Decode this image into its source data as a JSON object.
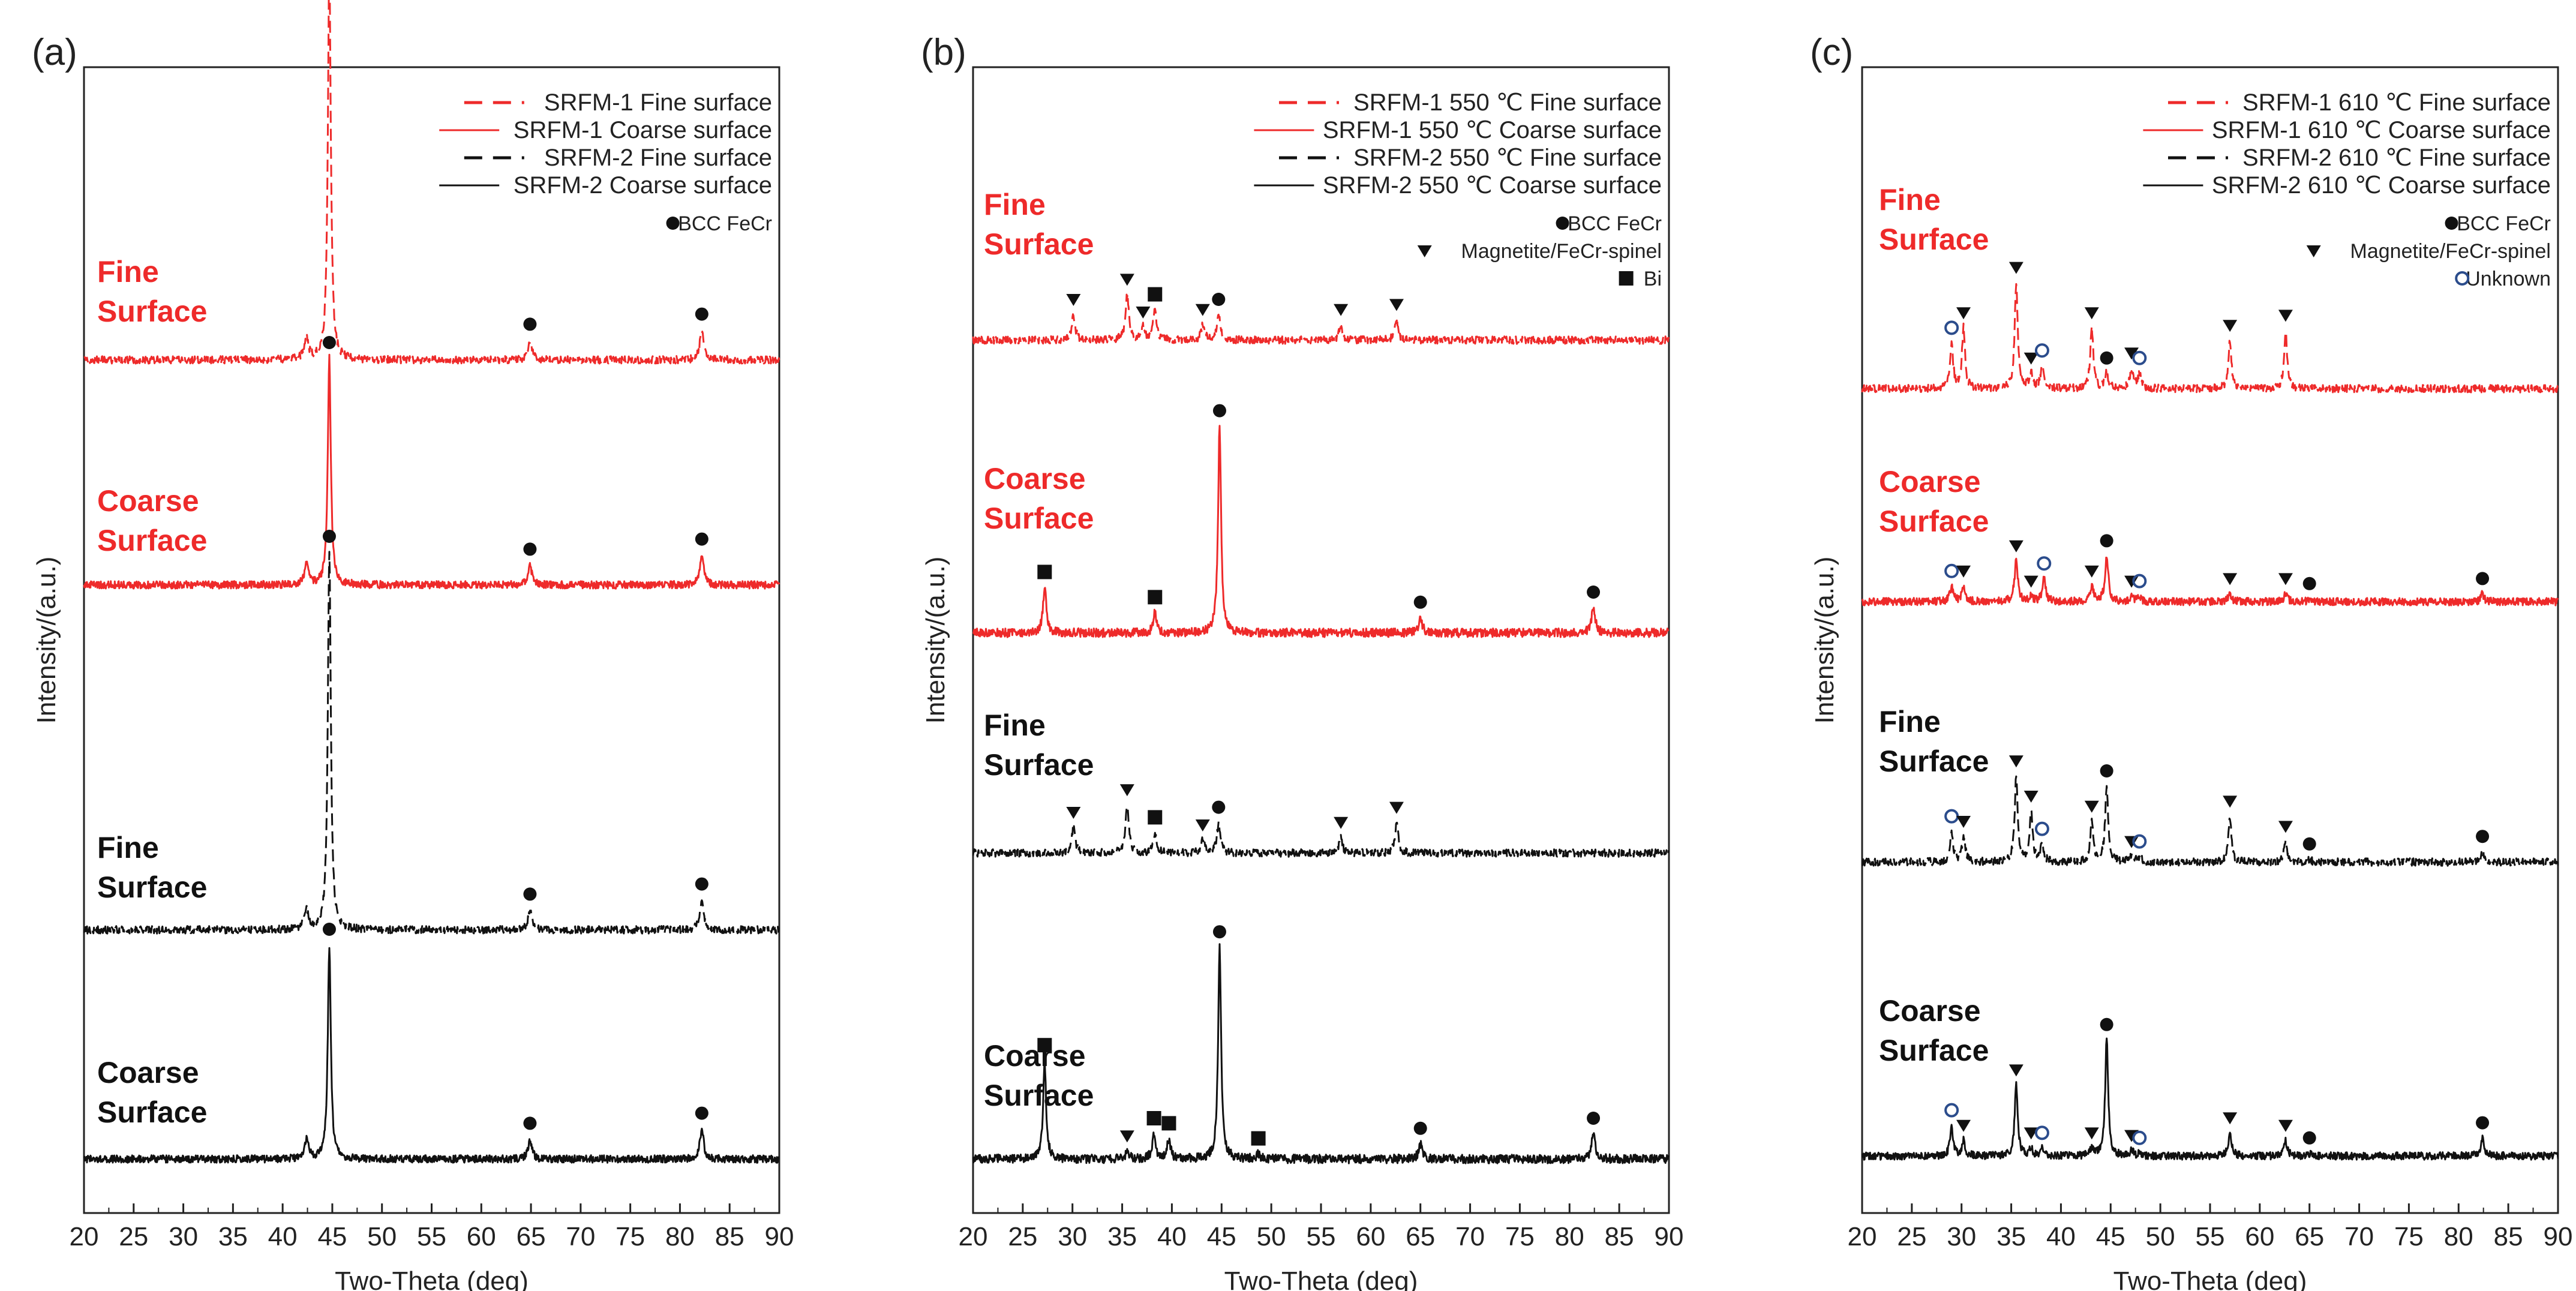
{
  "figure": {
    "colors": {
      "red": "#ee2a2a",
      "black": "#111111",
      "marker_blue": "#2b4c8c"
    }
  },
  "chart_data": [
    {
      "type": "line",
      "panel_label": "(a)",
      "xlabel": "Two-Theta (deg)",
      "ylabel": "Intensity/(a.u.)",
      "xlim": [
        20,
        90
      ],
      "xticks": [
        "20",
        "25",
        "30",
        "35",
        "40",
        "45",
        "50",
        "55",
        "60",
        "65",
        "70",
        "75",
        "80",
        "85",
        "90"
      ],
      "grid": false,
      "legend": {
        "placement": "top-right",
        "entries": [
          {
            "label": "SRFM-1 Fine surface",
            "color": "#ee2a2a",
            "style": "dashed"
          },
          {
            "label": "SRFM-1 Coarse surface",
            "color": "#ee2a2a",
            "style": "solid"
          },
          {
            "label": "SRFM-2 Fine surface",
            "color": "#111111",
            "style": "dashed"
          },
          {
            "label": "SRFM-2 Coarse surface",
            "color": "#111111",
            "style": "solid"
          }
        ],
        "phases": [
          {
            "marker": "circle",
            "label": "BCC FeCr"
          }
        ]
      },
      "series": [
        {
          "name": "SRFM-1 Fine surface",
          "curve_label": [
            "Fine",
            "Surface"
          ],
          "color": "#ee2a2a",
          "style": "dashed",
          "baseline": 0.0,
          "noise": 0.3,
          "peaks": [
            {
              "x": 42.4,
              "h": 0.8,
              "w": 0.25
            },
            {
              "x": 44.7,
              "h": 15.5,
              "w": 0.18,
              "m": "circle"
            },
            {
              "x": 64.9,
              "h": 0.8,
              "w": 0.22,
              "m": "circle"
            },
            {
              "x": 82.2,
              "h": 1.2,
              "w": 0.22,
              "m": "circle"
            }
          ]
        },
        {
          "name": "SRFM-1 Coarse surface",
          "curve_label": [
            "Coarse",
            "Surface"
          ],
          "color": "#ee2a2a",
          "style": "solid",
          "baseline": 0.0,
          "noise": 0.3,
          "peaks": [
            {
              "x": 42.4,
              "h": 0.8,
              "w": 0.25
            },
            {
              "x": 44.7,
              "h": 9.0,
              "w": 0.18,
              "m": "circle"
            },
            {
              "x": 64.9,
              "h": 0.8,
              "w": 0.22,
              "m": "circle"
            },
            {
              "x": 82.2,
              "h": 1.2,
              "w": 0.22,
              "m": "circle"
            }
          ]
        },
        {
          "name": "SRFM-2 Fine surface",
          "curve_label": [
            "Fine",
            "Surface"
          ],
          "color": "#111111",
          "style": "dashed",
          "baseline": 0.0,
          "noise": 0.3,
          "peaks": [
            {
              "x": 42.4,
              "h": 0.8,
              "w": 0.25
            },
            {
              "x": 44.7,
              "h": 15.0,
              "w": 0.18,
              "m": "circle"
            },
            {
              "x": 64.9,
              "h": 0.8,
              "w": 0.22,
              "m": "circle"
            },
            {
              "x": 82.2,
              "h": 1.2,
              "w": 0.22,
              "m": "circle"
            }
          ]
        },
        {
          "name": "SRFM-2 Coarse surface",
          "curve_label": [
            "Coarse",
            "Surface"
          ],
          "color": "#111111",
          "style": "solid",
          "baseline": 0.0,
          "noise": 0.3,
          "peaks": [
            {
              "x": 42.4,
              "h": 0.8,
              "w": 0.25
            },
            {
              "x": 44.7,
              "h": 8.5,
              "w": 0.18,
              "m": "circle"
            },
            {
              "x": 64.9,
              "h": 0.8,
              "w": 0.22,
              "m": "circle"
            },
            {
              "x": 82.2,
              "h": 1.2,
              "w": 0.22,
              "m": "circle"
            }
          ]
        }
      ]
    },
    {
      "type": "line",
      "panel_label": "(b)",
      "xlabel": "Two-Theta (deg)",
      "ylabel": "Intensity/(a.u.)",
      "xlim": [
        20,
        90
      ],
      "xticks": [
        "20",
        "25",
        "30",
        "35",
        "40",
        "45",
        "50",
        "55",
        "60",
        "65",
        "70",
        "75",
        "80",
        "85",
        "90"
      ],
      "grid": false,
      "legend": {
        "placement": "top-right",
        "entries": [
          {
            "label": "SRFM-1 550 ℃ Fine surface",
            "color": "#ee2a2a",
            "style": "dashed"
          },
          {
            "label": "SRFM-1 550 ℃ Coarse surface",
            "color": "#ee2a2a",
            "style": "solid"
          },
          {
            "label": "SRFM-2 550 ℃ Fine surface",
            "color": "#111111",
            "style": "dashed"
          },
          {
            "label": "SRFM-2 550 ℃ Coarse surface",
            "color": "#111111",
            "style": "solid"
          }
        ],
        "phases": [
          {
            "marker": "circle",
            "label": "BCC FeCr"
          },
          {
            "marker": "triangle",
            "label": "Magnetite/FeCr-spinel"
          },
          {
            "marker": "square",
            "label": "Bi"
          }
        ]
      },
      "series": [
        {
          "name": "SRFM-1 550 ℃ Fine surface",
          "curve_label": [
            "Fine",
            "Surface"
          ],
          "color": "#ee2a2a",
          "style": "dashed",
          "baseline": 0.0,
          "noise": 0.3,
          "peaks": [
            {
              "x": 30.1,
              "h": 1.0,
              "w": 0.2,
              "m": "triangle"
            },
            {
              "x": 35.5,
              "h": 1.8,
              "w": 0.2,
              "m": "triangle"
            },
            {
              "x": 37.1,
              "h": 0.5,
              "w": 0.2,
              "m": "triangle"
            },
            {
              "x": 38.3,
              "h": 1.2,
              "w": 0.2,
              "m": "square"
            },
            {
              "x": 43.1,
              "h": 0.6,
              "w": 0.2,
              "m": "triangle"
            },
            {
              "x": 44.7,
              "h": 1.0,
              "w": 0.2,
              "m": "circle"
            },
            {
              "x": 57.0,
              "h": 0.6,
              "w": 0.2,
              "m": "triangle"
            },
            {
              "x": 62.6,
              "h": 0.8,
              "w": 0.2,
              "m": "triangle"
            }
          ]
        },
        {
          "name": "SRFM-1 550 ℃ Coarse surface",
          "curve_label": [
            "Coarse",
            "Surface"
          ],
          "color": "#ee2a2a",
          "style": "solid",
          "baseline": 0.0,
          "noise": 0.35,
          "peaks": [
            {
              "x": 27.2,
              "h": 1.8,
              "w": 0.2,
              "m": "square"
            },
            {
              "x": 38.3,
              "h": 0.8,
              "w": 0.2,
              "m": "square"
            },
            {
              "x": 44.8,
              "h": 8.2,
              "w": 0.18,
              "m": "circle"
            },
            {
              "x": 65.0,
              "h": 0.6,
              "w": 0.22,
              "m": "circle"
            },
            {
              "x": 82.4,
              "h": 1.0,
              "w": 0.22,
              "m": "circle"
            }
          ]
        },
        {
          "name": "SRFM-2 550 ℃ Fine surface",
          "curve_label": [
            "Fine",
            "Surface"
          ],
          "color": "#111111",
          "style": "dashed",
          "baseline": 0.0,
          "noise": 0.3,
          "peaks": [
            {
              "x": 30.1,
              "h": 1.0,
              "w": 0.2,
              "m": "triangle"
            },
            {
              "x": 35.5,
              "h": 1.9,
              "w": 0.2,
              "m": "triangle"
            },
            {
              "x": 38.3,
              "h": 0.8,
              "w": 0.2,
              "m": "square"
            },
            {
              "x": 43.1,
              "h": 0.5,
              "w": 0.2,
              "m": "triangle"
            },
            {
              "x": 44.7,
              "h": 1.2,
              "w": 0.2,
              "m": "circle"
            },
            {
              "x": 57.0,
              "h": 0.6,
              "w": 0.2,
              "m": "triangle"
            },
            {
              "x": 62.6,
              "h": 1.2,
              "w": 0.2,
              "m": "triangle"
            }
          ]
        },
        {
          "name": "SRFM-2 550 ℃ Coarse surface",
          "curve_label": [
            "Coarse",
            "Surface"
          ],
          "color": "#111111",
          "style": "solid",
          "baseline": 0.0,
          "noise": 0.35,
          "peaks": [
            {
              "x": 27.2,
              "h": 3.9,
              "w": 0.18,
              "m": "square"
            },
            {
              "x": 35.5,
              "h": 0.3,
              "w": 0.2,
              "m": "triangle"
            },
            {
              "x": 38.2,
              "h": 1.0,
              "w": 0.2,
              "m": "square"
            },
            {
              "x": 39.7,
              "h": 0.8,
              "w": 0.2,
              "m": "square"
            },
            {
              "x": 44.8,
              "h": 8.4,
              "w": 0.18,
              "m": "circle"
            },
            {
              "x": 48.7,
              "h": 0.2,
              "w": 0.2,
              "m": "square"
            },
            {
              "x": 65.0,
              "h": 0.6,
              "w": 0.22,
              "m": "circle"
            },
            {
              "x": 82.4,
              "h": 1.0,
              "w": 0.22,
              "m": "circle"
            }
          ]
        }
      ]
    },
    {
      "type": "line",
      "panel_label": "(c)",
      "xlabel": "Two-Theta (deg)",
      "ylabel": "Intensity/(a.u.)",
      "xlim": [
        20,
        90
      ],
      "xticks": [
        "20",
        "25",
        "30",
        "35",
        "40",
        "45",
        "50",
        "55",
        "60",
        "65",
        "70",
        "75",
        "80",
        "85",
        "90"
      ],
      "grid": false,
      "legend": {
        "placement": "top-right",
        "entries": [
          {
            "label": "SRFM-1 610 ℃ Fine surface",
            "color": "#ee2a2a",
            "style": "dashed"
          },
          {
            "label": "SRFM-1 610 ℃ Coarse surface",
            "color": "#ee2a2a",
            "style": "solid"
          },
          {
            "label": "SRFM-2 610 ℃ Fine surface",
            "color": "#111111",
            "style": "dashed"
          },
          {
            "label": "SRFM-2 610 ℃ Coarse surface",
            "color": "#111111",
            "style": "solid"
          }
        ],
        "phases": [
          {
            "marker": "circle",
            "label": "BCC FeCr"
          },
          {
            "marker": "triangle",
            "label": "Magnetite/FeCr-spinel"
          },
          {
            "marker": "ring",
            "label": "Unknown"
          }
        ]
      },
      "series": [
        {
          "name": "SRFM-1 610 ℃ Fine surface",
          "curve_label": [
            "Fine",
            "Surface"
          ],
          "color": "#ee2a2a",
          "style": "dashed",
          "baseline": 0.0,
          "noise": 0.3,
          "peaks": [
            {
              "x": 29.0,
              "h": 1.8,
              "w": 0.18,
              "m": "ring"
            },
            {
              "x": 30.2,
              "h": 2.4,
              "w": 0.18,
              "m": "triangle"
            },
            {
              "x": 35.5,
              "h": 4.2,
              "w": 0.18,
              "m": "triangle"
            },
            {
              "x": 37.0,
              "h": 0.6,
              "w": 0.2,
              "m": "triangle"
            },
            {
              "x": 38.1,
              "h": 0.9,
              "w": 0.2,
              "m": "ring"
            },
            {
              "x": 43.1,
              "h": 2.4,
              "w": 0.18,
              "m": "triangle"
            },
            {
              "x": 44.6,
              "h": 0.6,
              "w": 0.2,
              "m": "circle"
            },
            {
              "x": 47.1,
              "h": 0.8,
              "w": 0.2,
              "m": "triangle"
            },
            {
              "x": 47.9,
              "h": 0.6,
              "w": 0.2,
              "m": "ring"
            },
            {
              "x": 57.0,
              "h": 1.9,
              "w": 0.18,
              "m": "triangle"
            },
            {
              "x": 62.6,
              "h": 2.3,
              "w": 0.18,
              "m": "triangle"
            }
          ]
        },
        {
          "name": "SRFM-1 610 ℃ Coarse surface",
          "curve_label": [
            "Coarse",
            "Surface"
          ],
          "color": "#ee2a2a",
          "style": "solid",
          "baseline": 0.0,
          "noise": 0.3,
          "peaks": [
            {
              "x": 29.0,
              "h": 0.6,
              "w": 0.2,
              "m": "ring"
            },
            {
              "x": 30.2,
              "h": 0.6,
              "w": 0.2,
              "m": "triangle"
            },
            {
              "x": 35.5,
              "h": 1.6,
              "w": 0.2,
              "m": "triangle"
            },
            {
              "x": 37.0,
              "h": 0.2,
              "w": 0.2,
              "m": "triangle"
            },
            {
              "x": 38.3,
              "h": 0.9,
              "w": 0.2,
              "m": "ring"
            },
            {
              "x": 43.1,
              "h": 0.6,
              "w": 0.2,
              "m": "triangle"
            },
            {
              "x": 44.6,
              "h": 1.8,
              "w": 0.2,
              "m": "circle"
            },
            {
              "x": 47.1,
              "h": 0.2,
              "w": 0.2,
              "m": "triangle"
            },
            {
              "x": 47.9,
              "h": 0.2,
              "w": 0.2,
              "m": "ring"
            },
            {
              "x": 57.0,
              "h": 0.3,
              "w": 0.2,
              "m": "triangle"
            },
            {
              "x": 62.6,
              "h": 0.3,
              "w": 0.2,
              "m": "triangle"
            },
            {
              "x": 65.0,
              "h": 0.1,
              "w": 0.2,
              "m": "circle"
            },
            {
              "x": 82.4,
              "h": 0.3,
              "w": 0.2,
              "m": "circle"
            }
          ]
        },
        {
          "name": "SRFM-2 610 ℃ Fine surface",
          "curve_label": [
            "Fine",
            "Surface"
          ],
          "color": "#111111",
          "style": "dashed",
          "baseline": 0.0,
          "noise": 0.3,
          "peaks": [
            {
              "x": 29.0,
              "h": 1.2,
              "w": 0.18,
              "m": "ring"
            },
            {
              "x": 30.2,
              "h": 1.0,
              "w": 0.2,
              "m": "triangle"
            },
            {
              "x": 35.5,
              "h": 3.4,
              "w": 0.18,
              "m": "triangle"
            },
            {
              "x": 37.0,
              "h": 2.0,
              "w": 0.18,
              "m": "triangle"
            },
            {
              "x": 38.1,
              "h": 0.7,
              "w": 0.2,
              "m": "ring"
            },
            {
              "x": 43.1,
              "h": 1.6,
              "w": 0.18,
              "m": "triangle"
            },
            {
              "x": 44.6,
              "h": 3.0,
              "w": 0.18,
              "m": "circle"
            },
            {
              "x": 47.1,
              "h": 0.2,
              "w": 0.2,
              "m": "triangle"
            },
            {
              "x": 47.9,
              "h": 0.2,
              "w": 0.2,
              "m": "ring"
            },
            {
              "x": 57.0,
              "h": 1.8,
              "w": 0.18,
              "m": "triangle"
            },
            {
              "x": 62.6,
              "h": 0.8,
              "w": 0.2,
              "m": "triangle"
            },
            {
              "x": 65.0,
              "h": 0.1,
              "w": 0.2,
              "m": "circle"
            },
            {
              "x": 82.4,
              "h": 0.4,
              "w": 0.2,
              "m": "circle"
            }
          ]
        },
        {
          "name": "SRFM-2 610 ℃ Coarse surface",
          "curve_label": [
            "Coarse",
            "Surface"
          ],
          "color": "#111111",
          "style": "solid",
          "baseline": 0.0,
          "noise": 0.3,
          "peaks": [
            {
              "x": 29.0,
              "h": 1.2,
              "w": 0.18,
              "m": "ring"
            },
            {
              "x": 30.2,
              "h": 0.6,
              "w": 0.2,
              "m": "triangle"
            },
            {
              "x": 35.5,
              "h": 2.8,
              "w": 0.18,
              "m": "triangle"
            },
            {
              "x": 37.0,
              "h": 0.3,
              "w": 0.2,
              "m": "triangle"
            },
            {
              "x": 38.1,
              "h": 0.3,
              "w": 0.2,
              "m": "ring"
            },
            {
              "x": 43.1,
              "h": 0.3,
              "w": 0.2,
              "m": "triangle"
            },
            {
              "x": 44.6,
              "h": 4.6,
              "w": 0.18,
              "m": "circle"
            },
            {
              "x": 47.1,
              "h": 0.2,
              "w": 0.2,
              "m": "triangle"
            },
            {
              "x": 47.9,
              "h": 0.1,
              "w": 0.2,
              "m": "ring"
            },
            {
              "x": 57.0,
              "h": 0.9,
              "w": 0.2,
              "m": "triangle"
            },
            {
              "x": 62.6,
              "h": 0.6,
              "w": 0.2,
              "m": "triangle"
            },
            {
              "x": 65.0,
              "h": 0.1,
              "w": 0.2,
              "m": "circle"
            },
            {
              "x": 82.4,
              "h": 0.7,
              "w": 0.2,
              "m": "circle"
            }
          ]
        }
      ]
    }
  ]
}
